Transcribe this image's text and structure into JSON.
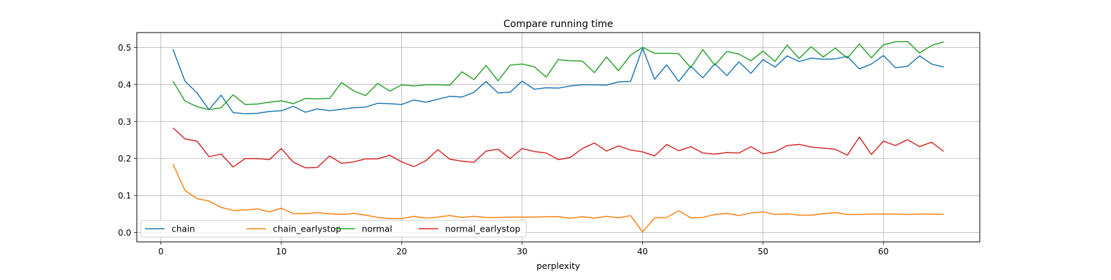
{
  "chart_data": {
    "type": "line",
    "title": "Compare running time",
    "xlabel": "perplexity",
    "ylabel": "",
    "xlim": [
      -2,
      68
    ],
    "ylim": [
      -0.025,
      0.54
    ],
    "xticks": [
      0,
      10,
      20,
      30,
      40,
      50,
      60
    ],
    "yticks": [
      0.0,
      0.1,
      0.2,
      0.3,
      0.4,
      0.5
    ],
    "grid": true,
    "legend": {
      "location": "lower-left",
      "ncol": 4
    },
    "x": [
      1,
      2,
      3,
      4,
      5,
      6,
      7,
      8,
      9,
      10,
      11,
      12,
      13,
      14,
      15,
      16,
      17,
      18,
      19,
      20,
      21,
      22,
      23,
      24,
      25,
      26,
      27,
      28,
      29,
      30,
      31,
      32,
      33,
      34,
      35,
      36,
      37,
      38,
      39,
      40,
      41,
      42,
      43,
      44,
      45,
      46,
      47,
      48,
      49,
      50,
      51,
      52,
      53,
      54,
      55,
      56,
      57,
      58,
      59,
      60,
      61,
      62,
      63,
      64,
      65
    ],
    "series": [
      {
        "name": "chain",
        "color": "#1f77b4",
        "values": [
          0.495,
          0.409,
          0.377,
          0.332,
          0.371,
          0.324,
          0.321,
          0.322,
          0.327,
          0.329,
          0.341,
          0.325,
          0.334,
          0.329,
          0.333,
          0.337,
          0.339,
          0.349,
          0.348,
          0.346,
          0.358,
          0.352,
          0.36,
          0.368,
          0.366,
          0.379,
          0.408,
          0.377,
          0.379,
          0.409,
          0.387,
          0.391,
          0.39,
          0.396,
          0.399,
          0.399,
          0.398,
          0.407,
          0.408,
          0.498,
          0.414,
          0.453,
          0.408,
          0.449,
          0.418,
          0.456,
          0.424,
          0.461,
          0.43,
          0.467,
          0.447,
          0.477,
          0.462,
          0.471,
          0.468,
          0.469,
          0.476,
          0.442,
          0.455,
          0.478,
          0.445,
          0.449,
          0.477,
          0.455,
          0.447
        ]
      },
      {
        "name": "chain_earlystop",
        "color": "#ff7f0e",
        "values": [
          0.185,
          0.114,
          0.092,
          0.085,
          0.068,
          0.06,
          0.061,
          0.064,
          0.056,
          0.066,
          0.051,
          0.051,
          0.054,
          0.051,
          0.049,
          0.052,
          0.047,
          0.041,
          0.038,
          0.038,
          0.044,
          0.039,
          0.042,
          0.046,
          0.041,
          0.044,
          0.041,
          0.041,
          0.042,
          0.042,
          0.042,
          0.043,
          0.043,
          0.039,
          0.043,
          0.039,
          0.044,
          0.04,
          0.046,
          0.002,
          0.04,
          0.041,
          0.059,
          0.04,
          0.041,
          0.049,
          0.052,
          0.046,
          0.053,
          0.056,
          0.049,
          0.051,
          0.047,
          0.047,
          0.051,
          0.054,
          0.049,
          0.049,
          0.05,
          0.05,
          0.05,
          0.049,
          0.05,
          0.05,
          0.049
        ]
      },
      {
        "name": "normal",
        "color": "#2ca02c",
        "values": [
          0.409,
          0.355,
          0.34,
          0.332,
          0.337,
          0.372,
          0.346,
          0.347,
          0.352,
          0.356,
          0.348,
          0.362,
          0.361,
          0.362,
          0.405,
          0.383,
          0.37,
          0.403,
          0.382,
          0.399,
          0.396,
          0.399,
          0.399,
          0.398,
          0.434,
          0.413,
          0.451,
          0.41,
          0.452,
          0.455,
          0.448,
          0.42,
          0.467,
          0.464,
          0.463,
          0.432,
          0.474,
          0.437,
          0.479,
          0.5,
          0.484,
          0.484,
          0.483,
          0.445,
          0.494,
          0.452,
          0.489,
          0.482,
          0.464,
          0.49,
          0.462,
          0.506,
          0.47,
          0.502,
          0.474,
          0.498,
          0.471,
          0.509,
          0.472,
          0.507,
          0.515,
          0.516,
          0.485,
          0.505,
          0.515
        ]
      },
      {
        "name": "normal_earlystop",
        "color": "#d62728",
        "values": [
          0.283,
          0.253,
          0.247,
          0.205,
          0.212,
          0.177,
          0.2,
          0.2,
          0.197,
          0.227,
          0.19,
          0.175,
          0.176,
          0.207,
          0.187,
          0.191,
          0.199,
          0.199,
          0.209,
          0.191,
          0.178,
          0.194,
          0.224,
          0.198,
          0.193,
          0.19,
          0.22,
          0.225,
          0.2,
          0.227,
          0.219,
          0.215,
          0.197,
          0.203,
          0.227,
          0.242,
          0.22,
          0.234,
          0.223,
          0.218,
          0.207,
          0.238,
          0.221,
          0.232,
          0.215,
          0.212,
          0.216,
          0.215,
          0.232,
          0.213,
          0.218,
          0.235,
          0.238,
          0.231,
          0.228,
          0.225,
          0.209,
          0.258,
          0.211,
          0.247,
          0.235,
          0.251,
          0.232,
          0.244,
          0.219
        ]
      }
    ]
  }
}
